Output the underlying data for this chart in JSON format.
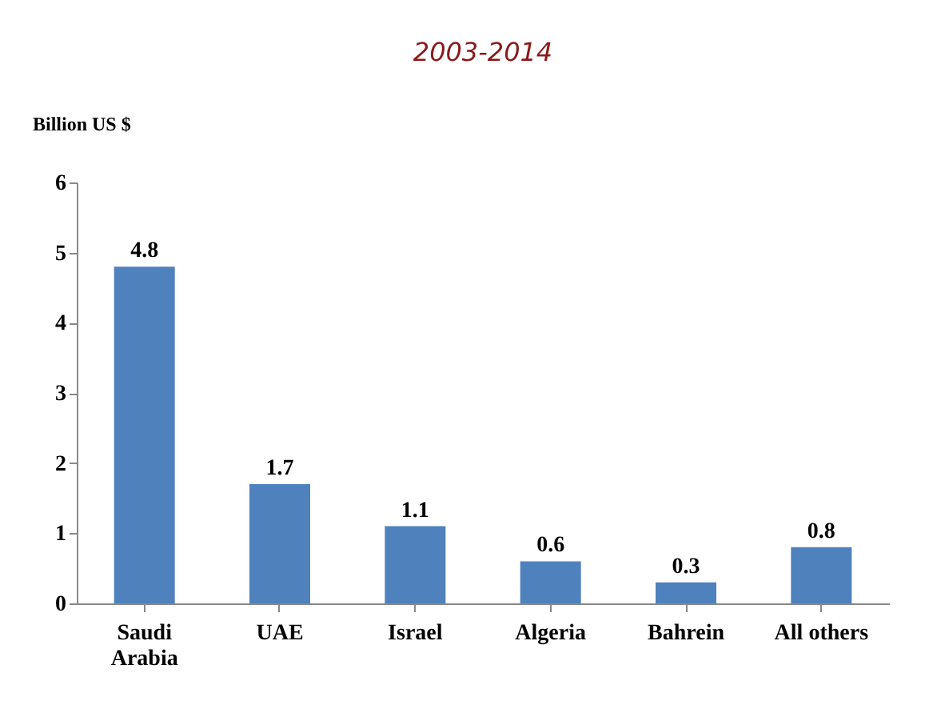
{
  "chart_data": {
    "type": "bar",
    "title": "2003-2014",
    "ylabel": "Billion US $",
    "categories": [
      "Saudi Arabia",
      "UAE",
      "Israel",
      "Algeria",
      "Bahrein",
      "All others"
    ],
    "values": [
      4.8,
      1.7,
      1.1,
      0.6,
      0.3,
      0.8
    ],
    "color": "#4f81bd",
    "ylim": [
      0,
      6
    ],
    "yticks": [
      0,
      1,
      2,
      3,
      4,
      5,
      6
    ],
    "grid": false,
    "data_labels": true
  }
}
